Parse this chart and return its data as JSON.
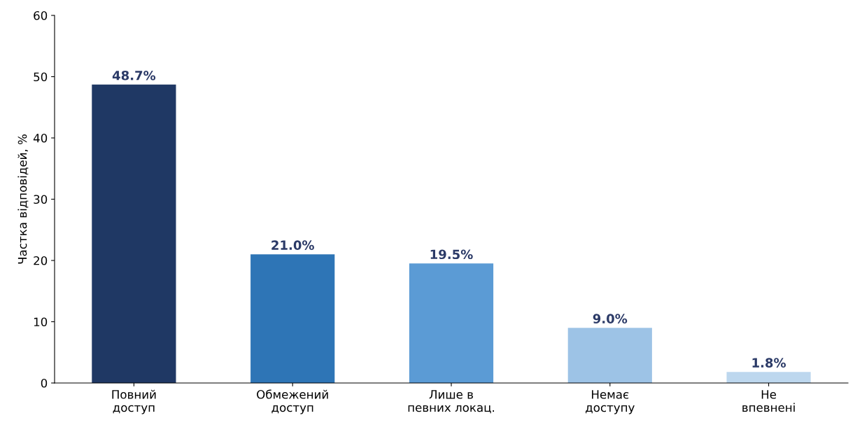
{
  "chart_data": {
    "type": "bar",
    "ylabel": "Частка відповідей, %",
    "categories": [
      "Повний\nдоступ",
      "Обмежений\nдоступ",
      "Лише в\nпевних локац.",
      "Немає\nдоступу",
      "Не\nвпевнені"
    ],
    "values": [
      48.7,
      21.0,
      19.5,
      9.0,
      1.8
    ],
    "colors": [
      "#1f3864",
      "#2e75b6",
      "#5b9bd5",
      "#9dc3e6",
      "#bdd7ee"
    ],
    "value_labels": [
      "48.7%",
      "21.0%",
      "19.5%",
      "9.0%",
      "1.8%"
    ],
    "ylim": [
      0,
      60
    ],
    "yticks": [
      0,
      10,
      20,
      30,
      40,
      50,
      60
    ],
    "grid": false
  }
}
